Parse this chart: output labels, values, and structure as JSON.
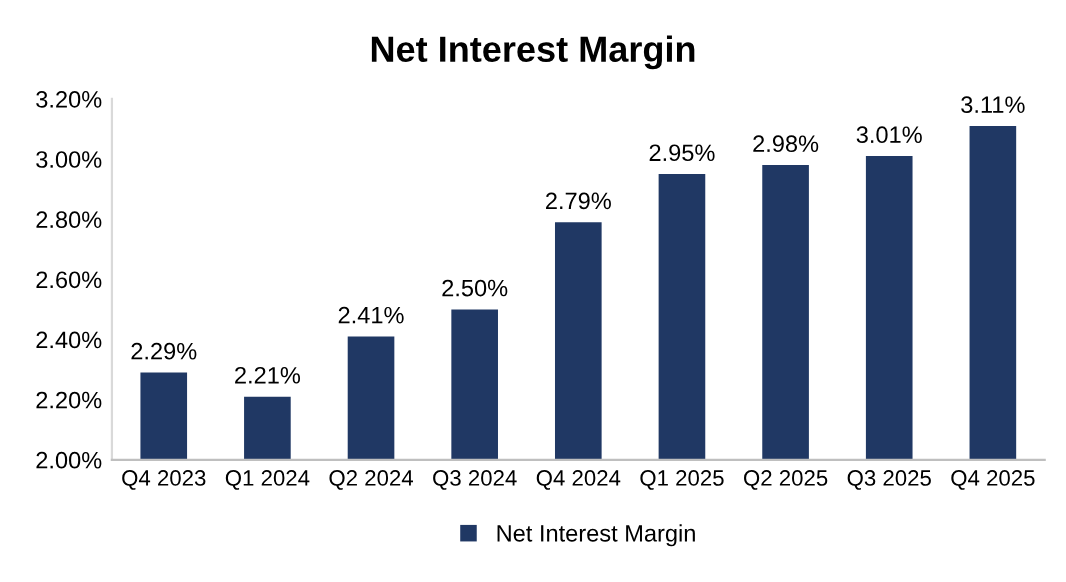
{
  "chart_data": {
    "type": "bar",
    "title": "Net Interest Margin",
    "categories": [
      "Q4 2023",
      "Q1 2024",
      "Q2 2024",
      "Q3 2024",
      "Q4 2024",
      "Q1 2025",
      "Q2 2025",
      "Q3 2025",
      "Q4 2025"
    ],
    "series": [
      {
        "name": "Net Interest Margin",
        "color": "#203864",
        "values": [
          2.29,
          2.21,
          2.41,
          2.5,
          2.79,
          2.95,
          2.98,
          3.01,
          3.11
        ],
        "value_labels": [
          "2.29%",
          "2.21%",
          "2.41%",
          "2.50%",
          "2.79%",
          "2.95%",
          "2.98%",
          "3.01%",
          "3.11%"
        ]
      }
    ],
    "ylim": [
      2.0,
      3.2
    ],
    "yticks": [
      {
        "value": 2.0,
        "label": "2.00%"
      },
      {
        "value": 2.2,
        "label": "2.20%"
      },
      {
        "value": 2.4,
        "label": "2.40%"
      },
      {
        "value": 2.6,
        "label": "2.60%"
      },
      {
        "value": 2.8,
        "label": "2.80%"
      },
      {
        "value": 3.0,
        "label": "3.00%"
      },
      {
        "value": 3.2,
        "label": "3.20%"
      }
    ],
    "grid": false,
    "legend": "bottom"
  }
}
